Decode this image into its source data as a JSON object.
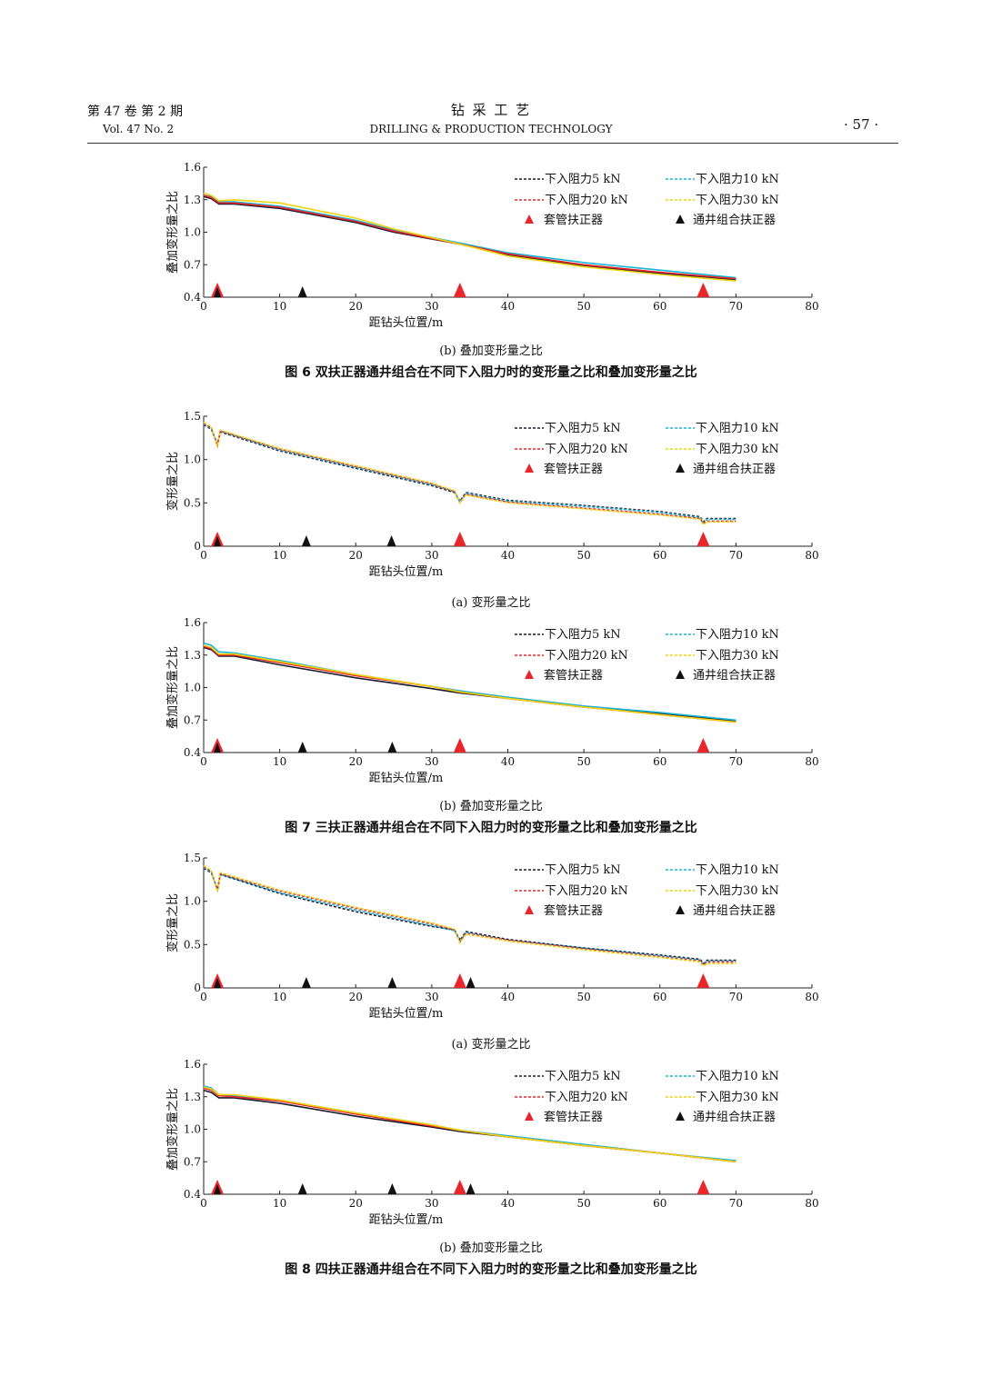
{
  "header": {
    "vol_cn": "第 47 卷   第 2 期",
    "vol_en": "Vol. 47   No. 2",
    "journal_cn": "钻      采      工      艺",
    "journal_en": "DRILLING & PRODUCTION TECHNOLOGY",
    "page": "· 57 ·"
  },
  "legend_labels": [
    "下入阻力5 kN",
    "下入阻力10 kN",
    "下入阻力20 kN",
    "下入阻力30 kN",
    "套管扶正器",
    "通井组合扶正器"
  ],
  "series_colors": [
    "#1a1a2e",
    "#19b6d8",
    "#e8262b",
    "#f2d40e"
  ],
  "marker_colors": {
    "casing": "#e8262b",
    "tool": "#111111"
  },
  "chart_data": [
    {
      "type": "line",
      "panel": "fig6b",
      "xlabel": "距钻头位置/m",
      "ylabel": "叠加变形量之比",
      "xlim": [
        0,
        80
      ],
      "ylim": [
        0.4,
        1.6
      ],
      "xticks": [
        0,
        10,
        20,
        30,
        40,
        50,
        60,
        70,
        80
      ],
      "yticks": [
        0.4,
        0.7,
        1.0,
        1.3,
        1.6
      ],
      "dashed": false,
      "series": [
        {
          "name": "下入阻力5 kN",
          "x": [
            0,
            1,
            2,
            4,
            10,
            20,
            25,
            33.7,
            40,
            50,
            60,
            70
          ],
          "y": [
            1.33,
            1.31,
            1.26,
            1.26,
            1.22,
            1.09,
            1.0,
            0.89,
            0.79,
            0.69,
            0.62,
            0.56
          ]
        },
        {
          "name": "下入阻力10 kN",
          "x": [
            0,
            1,
            2,
            4,
            10,
            20,
            25,
            33.7,
            40,
            50,
            60,
            70
          ],
          "y": [
            1.36,
            1.33,
            1.28,
            1.28,
            1.24,
            1.11,
            1.02,
            0.9,
            0.81,
            0.72,
            0.65,
            0.58
          ]
        },
        {
          "name": "下入阻力20 kN",
          "x": [
            0,
            1,
            2,
            4,
            10,
            20,
            25,
            33.7,
            40,
            50,
            60,
            70
          ],
          "y": [
            1.34,
            1.32,
            1.27,
            1.27,
            1.23,
            1.1,
            1.01,
            0.89,
            0.8,
            0.7,
            0.63,
            0.57
          ]
        },
        {
          "name": "下入阻力30 kN",
          "x": [
            0,
            1,
            2,
            4,
            10,
            20,
            25,
            33.7,
            40,
            50,
            60,
            70
          ],
          "y": [
            1.36,
            1.34,
            1.29,
            1.3,
            1.27,
            1.13,
            1.03,
            0.89,
            0.78,
            0.68,
            0.61,
            0.55
          ]
        }
      ],
      "casing_centralizers": [
        1.8,
        33.7,
        65.7
      ],
      "tool_centralizers": [
        13
      ]
    },
    {
      "type": "line",
      "panel": "fig7a",
      "xlabel": "距钻头位置/m",
      "ylabel": "变形量之比",
      "xlim": [
        0,
        80
      ],
      "ylim": [
        0,
        1.5
      ],
      "xticks": [
        0,
        10,
        20,
        30,
        40,
        50,
        60,
        70,
        80
      ],
      "yticks": [
        0,
        0.5,
        1.0,
        1.5
      ],
      "dashed": true,
      "series": [
        {
          "name": "下入阻力5 kN",
          "x": [
            0,
            1,
            1.8,
            2.2,
            10,
            20,
            30,
            33,
            33.7,
            34.5,
            40,
            50,
            60,
            65.3,
            65.7,
            66.2,
            70
          ],
          "y": [
            1.4,
            1.35,
            1.18,
            1.32,
            1.1,
            0.9,
            0.7,
            0.62,
            0.52,
            0.62,
            0.53,
            0.47,
            0.4,
            0.34,
            0.28,
            0.32,
            0.32
          ]
        },
        {
          "name": "下入阻力10 kN",
          "x": [
            0,
            1,
            1.8,
            2.2,
            10,
            20,
            30,
            33,
            33.7,
            34.5,
            40,
            50,
            60,
            65.3,
            65.7,
            66.2,
            70
          ],
          "y": [
            1.41,
            1.36,
            1.17,
            1.33,
            1.11,
            0.91,
            0.71,
            0.63,
            0.51,
            0.61,
            0.52,
            0.46,
            0.39,
            0.33,
            0.27,
            0.31,
            0.31
          ]
        },
        {
          "name": "下入阻力20 kN",
          "x": [
            0,
            1,
            1.8,
            2.2,
            10,
            20,
            30,
            33,
            33.7,
            34.5,
            40,
            50,
            60,
            65.3,
            65.7,
            66.2,
            70
          ],
          "y": [
            1.42,
            1.37,
            1.16,
            1.33,
            1.12,
            0.92,
            0.72,
            0.63,
            0.5,
            0.6,
            0.51,
            0.44,
            0.37,
            0.32,
            0.26,
            0.29,
            0.29
          ]
        },
        {
          "name": "下入阻力30 kN",
          "x": [
            0,
            1,
            1.8,
            2.2,
            10,
            20,
            30,
            33,
            33.7,
            34.5,
            40,
            50,
            60,
            65.3,
            65.7,
            66.2,
            70
          ],
          "y": [
            1.43,
            1.38,
            1.15,
            1.34,
            1.13,
            0.93,
            0.73,
            0.64,
            0.5,
            0.59,
            0.5,
            0.43,
            0.36,
            0.31,
            0.25,
            0.28,
            0.28
          ]
        }
      ],
      "casing_centralizers": [
        1.8,
        33.7,
        65.7
      ],
      "tool_centralizers": [
        13.5,
        24.7
      ]
    },
    {
      "type": "line",
      "panel": "fig7b",
      "xlabel": "距钻头位置/m",
      "ylabel": "叠加变形量之比",
      "xlim": [
        0,
        80
      ],
      "ylim": [
        0.4,
        1.6
      ],
      "xticks": [
        0,
        10,
        20,
        30,
        40,
        50,
        60,
        70,
        80
      ],
      "yticks": [
        0.4,
        0.7,
        1.0,
        1.3,
        1.6
      ],
      "dashed": false,
      "series": [
        {
          "name": "下入阻力5 kN",
          "x": [
            0,
            1,
            2,
            4,
            10,
            20,
            30,
            33.7,
            40,
            50,
            60,
            70
          ],
          "y": [
            1.37,
            1.35,
            1.29,
            1.29,
            1.21,
            1.09,
            0.99,
            0.95,
            0.9,
            0.82,
            0.76,
            0.69
          ]
        },
        {
          "name": "下入阻力10 kN",
          "x": [
            0,
            1,
            2,
            4,
            10,
            20,
            30,
            33.7,
            40,
            50,
            60,
            70
          ],
          "y": [
            1.41,
            1.39,
            1.33,
            1.32,
            1.25,
            1.12,
            1.01,
            0.97,
            0.91,
            0.83,
            0.77,
            0.7
          ]
        },
        {
          "name": "下入阻力20 kN",
          "x": [
            0,
            1,
            2,
            4,
            10,
            20,
            30,
            33.7,
            40,
            50,
            60,
            70
          ],
          "y": [
            1.38,
            1.36,
            1.3,
            1.3,
            1.23,
            1.11,
            1.01,
            0.96,
            0.9,
            0.82,
            0.75,
            0.68
          ]
        },
        {
          "name": "下入阻力30 kN",
          "x": [
            0,
            1,
            2,
            4,
            10,
            20,
            30,
            33.7,
            40,
            50,
            60,
            70
          ],
          "y": [
            1.39,
            1.37,
            1.31,
            1.31,
            1.24,
            1.12,
            1.01,
            0.96,
            0.9,
            0.82,
            0.75,
            0.68
          ]
        }
      ],
      "casing_centralizers": [
        1.8,
        33.7,
        65.7
      ],
      "tool_centralizers": [
        13,
        24.8
      ]
    },
    {
      "type": "line",
      "panel": "fig8a",
      "xlabel": "距钻头位置/m",
      "ylabel": "变形量之比",
      "xlim": [
        0,
        80
      ],
      "ylim": [
        0,
        1.5
      ],
      "xticks": [
        0,
        10,
        20,
        30,
        40,
        50,
        60,
        70,
        80
      ],
      "yticks": [
        0,
        0.5,
        1.0,
        1.5
      ],
      "dashed": true,
      "series": [
        {
          "name": "下入阻力5 kN",
          "x": [
            0,
            1,
            1.8,
            2.2,
            10,
            20,
            30,
            33,
            33.7,
            34.5,
            40,
            50,
            60,
            65.3,
            65.7,
            66.2,
            70
          ],
          "y": [
            1.38,
            1.33,
            1.14,
            1.31,
            1.09,
            0.88,
            0.71,
            0.67,
            0.55,
            0.65,
            0.56,
            0.46,
            0.38,
            0.33,
            0.28,
            0.32,
            0.32
          ]
        },
        {
          "name": "下入阻力10 kN",
          "x": [
            0,
            1,
            1.8,
            2.2,
            10,
            20,
            30,
            33,
            33.7,
            34.5,
            40,
            50,
            60,
            65.3,
            65.7,
            66.2,
            70
          ],
          "y": [
            1.39,
            1.34,
            1.13,
            1.31,
            1.1,
            0.9,
            0.72,
            0.66,
            0.54,
            0.64,
            0.55,
            0.46,
            0.37,
            0.32,
            0.27,
            0.31,
            0.31
          ]
        },
        {
          "name": "下入阻力20 kN",
          "x": [
            0,
            1,
            1.8,
            2.2,
            10,
            20,
            30,
            33,
            33.7,
            34.5,
            40,
            50,
            60,
            65.3,
            65.7,
            66.2,
            70
          ],
          "y": [
            1.4,
            1.35,
            1.12,
            1.32,
            1.12,
            0.92,
            0.74,
            0.67,
            0.53,
            0.63,
            0.55,
            0.45,
            0.36,
            0.31,
            0.26,
            0.3,
            0.3
          ]
        },
        {
          "name": "下入阻力30 kN",
          "x": [
            0,
            1,
            1.8,
            2.2,
            10,
            20,
            30,
            33,
            33.7,
            34.5,
            40,
            50,
            60,
            65.3,
            65.7,
            66.2,
            70
          ],
          "y": [
            1.41,
            1.36,
            1.11,
            1.33,
            1.13,
            0.93,
            0.75,
            0.68,
            0.52,
            0.62,
            0.54,
            0.44,
            0.35,
            0.3,
            0.25,
            0.28,
            0.28
          ]
        }
      ],
      "casing_centralizers": [
        1.8,
        33.7,
        65.7
      ],
      "tool_centralizers": [
        13.5,
        24.8,
        35.1
      ]
    },
    {
      "type": "line",
      "panel": "fig8b",
      "xlabel": "距钻头位置/m",
      "ylabel": "叠加变形量之比",
      "xlim": [
        0,
        80
      ],
      "ylim": [
        0.4,
        1.6
      ],
      "xticks": [
        0,
        10,
        20,
        30,
        40,
        50,
        60,
        70,
        80
      ],
      "yticks": [
        0.4,
        0.7,
        1.0,
        1.3,
        1.6
      ],
      "dashed": false,
      "series": [
        {
          "name": "下入阻力5 kN",
          "x": [
            0,
            1,
            2,
            4,
            10,
            20,
            30,
            33.7,
            40,
            50,
            60,
            70
          ],
          "y": [
            1.36,
            1.34,
            1.29,
            1.29,
            1.24,
            1.12,
            1.02,
            0.98,
            0.93,
            0.85,
            0.78,
            0.7
          ]
        },
        {
          "name": "下入阻力10 kN",
          "x": [
            0,
            1,
            2,
            4,
            10,
            20,
            30,
            33.7,
            40,
            50,
            60,
            70
          ],
          "y": [
            1.4,
            1.38,
            1.32,
            1.31,
            1.27,
            1.15,
            1.04,
            0.99,
            0.94,
            0.86,
            0.78,
            0.71
          ]
        },
        {
          "name": "下入阻力20 kN",
          "x": [
            0,
            1,
            2,
            4,
            10,
            20,
            30,
            33.7,
            40,
            50,
            60,
            70
          ],
          "y": [
            1.38,
            1.36,
            1.31,
            1.3,
            1.26,
            1.14,
            1.03,
            0.99,
            0.93,
            0.85,
            0.78,
            0.7
          ]
        },
        {
          "name": "下入阻力30 kN",
          "x": [
            0,
            1,
            2,
            4,
            10,
            20,
            30,
            33.7,
            40,
            50,
            60,
            70
          ],
          "y": [
            1.39,
            1.37,
            1.32,
            1.32,
            1.27,
            1.15,
            1.04,
            0.99,
            0.93,
            0.85,
            0.78,
            0.7
          ]
        }
      ],
      "casing_centralizers": [
        1.8,
        33.7,
        65.7
      ],
      "tool_centralizers": [
        13,
        24.8,
        35.1
      ]
    }
  ],
  "captions": {
    "fig6_sub_b": "(b) 叠加变形量之比",
    "fig6": "图 6    双扶正器通井组合在不同下入阻力时的变形量之比和叠加变形量之比",
    "fig7_sub_a": "(a) 变形量之比",
    "fig7_sub_b": "(b) 叠加变形量之比",
    "fig7": "图 7    三扶正器通井组合在不同下入阻力时的变形量之比和叠加变形量之比",
    "fig8_sub_a": "(a) 变形量之比",
    "fig8_sub_b": "(b) 叠加变形量之比",
    "fig8": "图 8    四扶正器通井组合在不同下入阻力时的变形量之比和叠加变形量之比"
  }
}
